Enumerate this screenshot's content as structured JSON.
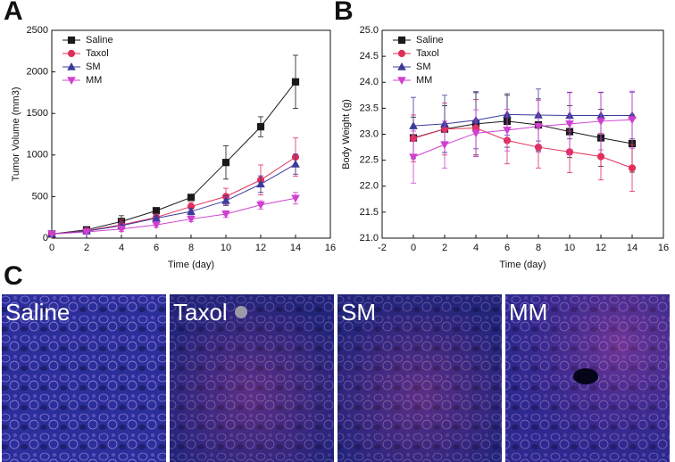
{
  "chart_data": [
    {
      "type": "line",
      "panel": "A",
      "xlabel": "Time (day)",
      "ylabel": "Tumor Volume (mm3)",
      "x": [
        0,
        2,
        4,
        6,
        8,
        10,
        12,
        14
      ],
      "xlim": [
        0,
        16
      ],
      "xticks": [
        0,
        2,
        4,
        6,
        8,
        10,
        12,
        14,
        16
      ],
      "ylim": [
        0,
        2500
      ],
      "yticks": [
        0,
        500,
        1000,
        1500,
        2000,
        2500
      ],
      "legend": "upper left",
      "series": [
        {
          "name": "Saline",
          "color": "#1a1a1a",
          "marker": "square",
          "values": [
            50,
            100,
            200,
            330,
            490,
            910,
            1340,
            1880
          ],
          "errors": [
            10,
            20,
            70,
            30,
            30,
            200,
            120,
            320
          ]
        },
        {
          "name": "Taxol",
          "color": "#e0305a",
          "marker": "circle",
          "values": [
            50,
            90,
            160,
            250,
            380,
            500,
            700,
            975
          ],
          "errors": [
            10,
            20,
            60,
            40,
            50,
            100,
            180,
            230
          ]
        },
        {
          "name": "SM",
          "color": "#3b3b9c",
          "marker": "triangle-up",
          "values": [
            50,
            85,
            150,
            240,
            320,
            450,
            650,
            890
          ],
          "errors": [
            10,
            20,
            40,
            30,
            40,
            60,
            100,
            120
          ]
        },
        {
          "name": "MM",
          "color": "#d040d0",
          "marker": "triangle-down",
          "values": [
            50,
            75,
            110,
            160,
            230,
            290,
            400,
            480
          ],
          "errors": [
            10,
            15,
            30,
            30,
            30,
            40,
            50,
            70
          ]
        }
      ]
    },
    {
      "type": "line",
      "panel": "B",
      "xlabel": "Time (day)",
      "ylabel": "Body Weight (g)",
      "x": [
        0,
        2,
        4,
        6,
        8,
        10,
        12,
        14
      ],
      "xlim": [
        -2,
        16
      ],
      "xticks": [
        -2,
        0,
        2,
        4,
        6,
        8,
        10,
        12,
        14,
        16
      ],
      "ylim": [
        21,
        25
      ],
      "yticks": [
        {
          "value": 21,
          "label": "21.0"
        },
        21.5,
        {
          "value": 22,
          "label": "22.0"
        },
        22.5,
        {
          "value": 23,
          "label": "23.0"
        },
        23.5,
        {
          "value": 24,
          "label": "24.0"
        },
        24.5,
        {
          "value": 25,
          "label": "25.0"
        }
      ],
      "legend": "upper left",
      "series": [
        {
          "name": "Saline",
          "color": "#1a1a1a",
          "marker": "square",
          "values": [
            22.93,
            23.1,
            23.2,
            23.25,
            23.18,
            23.05,
            22.93,
            22.82
          ],
          "errors": [
            0.4,
            0.45,
            0.6,
            0.5,
            0.5,
            0.5,
            0.55,
            0.55
          ]
        },
        {
          "name": "Taxol",
          "color": "#e0305a",
          "marker": "circle",
          "values": [
            22.92,
            23.1,
            23.12,
            22.88,
            22.75,
            22.66,
            22.57,
            22.35
          ],
          "errors": [
            0.45,
            0.5,
            0.55,
            0.45,
            0.4,
            0.4,
            0.45,
            0.45
          ]
        },
        {
          "name": "SM",
          "color": "#3b3b9c",
          "marker": "triangle-up",
          "values": [
            23.16,
            23.2,
            23.27,
            23.38,
            23.37,
            23.36,
            23.36,
            23.36
          ],
          "errors": [
            0.55,
            0.55,
            0.55,
            0.4,
            0.5,
            0.45,
            0.45,
            0.45
          ]
        },
        {
          "name": "MM",
          "color": "#d040d0",
          "marker": "triangle-down",
          "values": [
            22.56,
            22.8,
            23.02,
            23.08,
            23.15,
            23.2,
            23.25,
            23.28
          ],
          "errors": [
            0.5,
            0.45,
            0.45,
            0.4,
            0.5,
            0.6,
            0.55,
            0.55
          ]
        }
      ]
    }
  ],
  "panel_c": {
    "label": "C",
    "images": [
      "Saline",
      "Taxol",
      "SM",
      "MM"
    ]
  }
}
